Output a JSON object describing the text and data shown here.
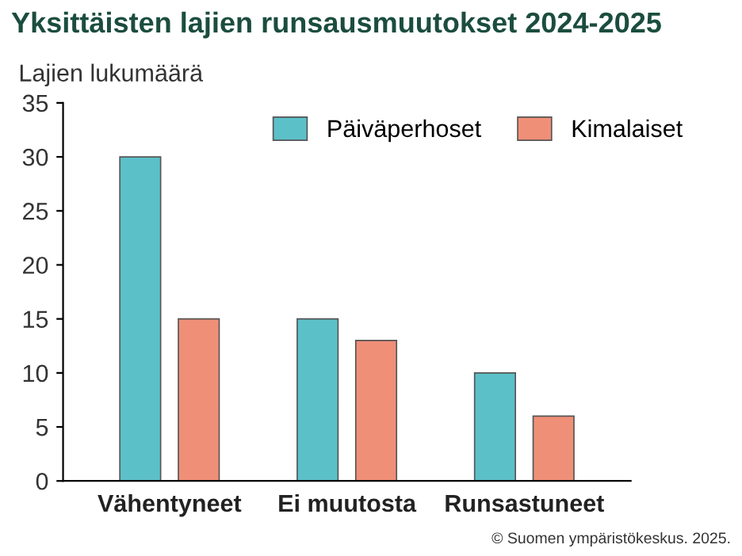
{
  "chart_data": {
    "type": "bar",
    "title": "Yksittäisten lajien runsausmuutokset 2024-2025",
    "ylabel": "Lajien lukumäärä",
    "categories": [
      "Vähentyneet",
      "Ei muutosta",
      "Runsastuneet"
    ],
    "series": [
      {
        "name": "Päiväperhoset",
        "color": "#5cc0c9",
        "values": [
          30,
          15,
          10
        ]
      },
      {
        "name": "Kimalaiset",
        "color": "#f08f78",
        "values": [
          15,
          13,
          6
        ]
      }
    ],
    "ylim": [
      0,
      35
    ],
    "yticks": [
      0,
      5,
      10,
      15,
      20,
      25,
      30,
      35
    ],
    "grid": false,
    "legend": "top right",
    "annotations": [
      "© Suomen ympäristökeskus. 2025."
    ]
  }
}
